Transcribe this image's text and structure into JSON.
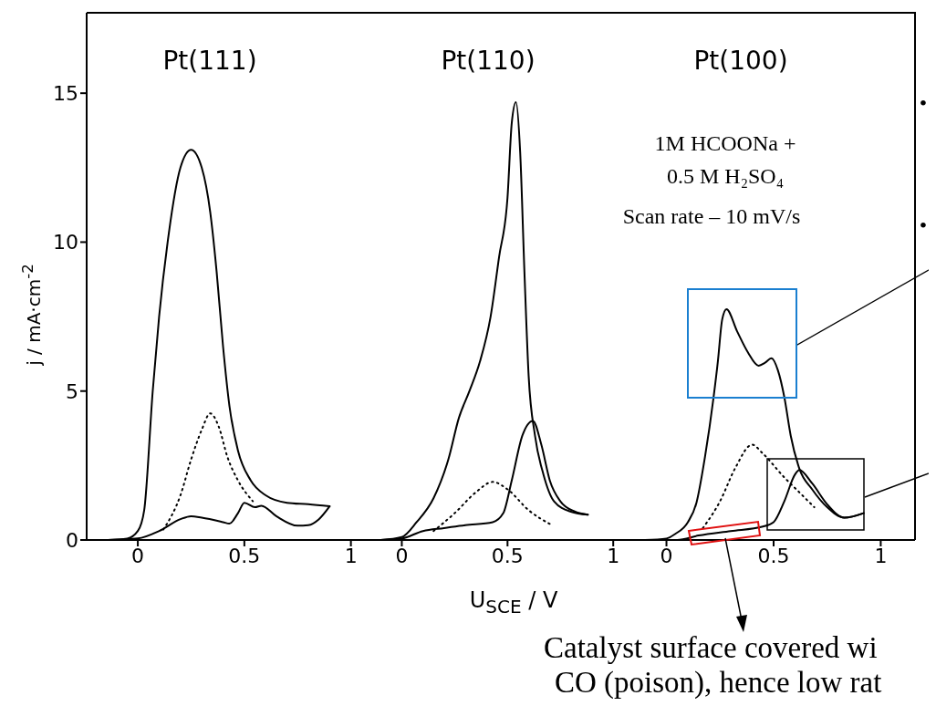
{
  "chart_data": [
    {
      "type": "line",
      "title": "Pt(111)",
      "ylabel": "j / mA·cm$^{-2}$",
      "xlim": [
        -0.24,
        1.1
      ],
      "xticks": [
        0,
        0.5,
        1
      ],
      "ylim": [
        0,
        17.7
      ],
      "yticks": [
        0,
        5,
        10,
        15
      ],
      "series": [
        {
          "color": "#000000",
          "line_style": "solid",
          "x": [
            -0.14,
            0.0,
            0.1,
            0.2,
            0.25,
            0.3,
            0.4,
            0.43,
            0.47,
            0.5,
            0.55,
            0.58,
            0.65,
            0.75,
            0.8,
            0.85,
            0.9
          ],
          "values": [
            0,
            0.05,
            0.3,
            0.7,
            0.8,
            0.75,
            0.6,
            0.55,
            0.9,
            1.25,
            1.1,
            1.15,
            0.8,
            0.48,
            0.5,
            0.7,
            1.13
          ]
        },
        {
          "color": "#000000",
          "line_style": "solid",
          "x": [
            0.9,
            0.8,
            0.7,
            0.6,
            0.53,
            0.47,
            0.43,
            0.4,
            0.37,
            0.34,
            0.3,
            0.25,
            0.2,
            0.14,
            0.1,
            0.07,
            0.03,
            0.0,
            -0.05,
            -0.14
          ],
          "values": [
            1.13,
            1.2,
            1.25,
            1.5,
            2.0,
            3.0,
            4.5,
            6.5,
            9,
            11,
            12.5,
            13.1,
            12.5,
            10,
            7.5,
            5,
            1.0,
            0.3,
            0.05,
            0
          ]
        },
        {
          "color": "#000000",
          "line_style": "dotted",
          "x": [
            0.12,
            0.2,
            0.25,
            0.3,
            0.34,
            0.38,
            0.42,
            0.47,
            0.54
          ],
          "values": [
            0.35,
            1.5,
            2.7,
            3.7,
            4.25,
            3.8,
            2.8,
            2.0,
            1.3
          ]
        }
      ]
    },
    {
      "type": "line",
      "title": "Pt(110)",
      "xlabel": "U$_{SCE}$ / V",
      "xlim": [
        -0.14,
        1.12
      ],
      "xticks": [
        0,
        0.5,
        1
      ],
      "ylim": [
        0,
        17.7
      ],
      "yticks": [
        0,
        5,
        10,
        15
      ],
      "tick_labels": "x",
      "series": [
        {
          "color": "#000000",
          "line_style": "solid",
          "x": [
            -0.1,
            0.0,
            0.1,
            0.2,
            0.3,
            0.43,
            0.48,
            0.52,
            0.57,
            0.62,
            0.66,
            0.7,
            0.75,
            0.82,
            0.88
          ],
          "values": [
            0,
            0.05,
            0.3,
            0.4,
            0.5,
            0.6,
            0.9,
            2.0,
            3.5,
            4.0,
            3.2,
            2.0,
            1.3,
            0.95,
            0.85
          ]
        },
        {
          "color": "#000000",
          "line_style": "solid",
          "x": [
            0.88,
            0.8,
            0.72,
            0.67,
            0.63,
            0.6,
            0.58,
            0.56,
            0.54,
            0.52,
            0.5,
            0.46,
            0.42,
            0.37,
            0.32,
            0.27,
            0.22,
            0.15,
            0.07,
            0.0,
            -0.1
          ],
          "values": [
            0.85,
            0.95,
            1.3,
            2.2,
            3.5,
            5.5,
            9,
            13,
            14.7,
            14,
            11.5,
            9.5,
            7.5,
            6,
            5,
            4.1,
            2.7,
            1.4,
            0.6,
            0.1,
            0
          ]
        },
        {
          "color": "#000000",
          "line_style": "dotted",
          "x": [
            0.15,
            0.25,
            0.35,
            0.43,
            0.5,
            0.6,
            0.71
          ],
          "values": [
            0.3,
            0.9,
            1.6,
            1.95,
            1.7,
            1.0,
            0.5
          ]
        }
      ]
    },
    {
      "type": "line",
      "title": "Pt(100)",
      "xlim": [
        -0.13,
        1.16
      ],
      "xticks": [
        0,
        0.5,
        1
      ],
      "ylim": [
        0,
        17.7
      ],
      "yticks": [
        0,
        5,
        10,
        15
      ],
      "tick_labels": "x",
      "annotations": [
        "1M HCOONa +",
        "0.5 M H₂SO₄",
        "Scan rate – 10 mV/s",
        "•",
        "•",
        "Catalyst surface covered wi",
        "CO (poison), hence low rat"
      ],
      "series": [
        {
          "color": "#000000",
          "line_style": "solid",
          "x": [
            -0.1,
            0.05,
            0.15,
            0.3,
            0.45,
            0.5,
            0.55,
            0.6,
            0.62,
            0.68,
            0.75,
            0.83,
            0.92
          ],
          "values": [
            0,
            0.0,
            0.15,
            0.3,
            0.45,
            0.6,
            1.3,
            2.2,
            2.35,
            1.9,
            1.2,
            0.75,
            0.9
          ]
        },
        {
          "color": "#000000",
          "line_style": "solid",
          "x": [
            0.92,
            0.83,
            0.75,
            0.68,
            0.62,
            0.58,
            0.55,
            0.52,
            0.49,
            0.46,
            0.43,
            0.38,
            0.33,
            0.28,
            0.26,
            0.24,
            0.22,
            0.18,
            0.14,
            0.1,
            0.04,
            0.0,
            -0.1
          ],
          "values": [
            0.9,
            0.75,
            1.1,
            1.7,
            2.4,
            3.5,
            4.8,
            5.7,
            6.1,
            5.95,
            5.85,
            6.3,
            7.0,
            7.75,
            7.4,
            6,
            4.8,
            2.8,
            1.25,
            0.6,
            0.2,
            0.05,
            0
          ]
        },
        {
          "color": "#000000",
          "line_style": "dotted",
          "x": [
            0.17,
            0.25,
            0.32,
            0.4,
            0.45,
            0.55,
            0.62,
            0.69
          ],
          "values": [
            0.4,
            1.3,
            2.4,
            3.2,
            2.9,
            2.1,
            1.6,
            1.1
          ]
        }
      ]
    }
  ]
}
